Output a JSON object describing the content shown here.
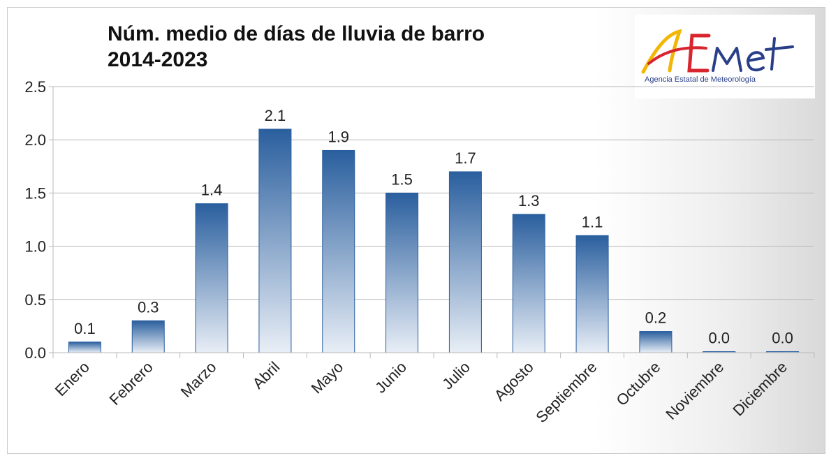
{
  "chart_data": {
    "type": "bar",
    "title": "Núm. medio de días de lluvia de barro",
    "subtitle": "2014-2023",
    "categories": [
      "Enero",
      "Febrero",
      "Marzo",
      "Abril",
      "Mayo",
      "Junio",
      "Julio",
      "Agosto",
      "Septiembre",
      "Octubre",
      "Noviembre",
      "Diciembre"
    ],
    "values": [
      0.1,
      0.3,
      1.4,
      2.1,
      1.9,
      1.5,
      1.7,
      1.3,
      1.1,
      0.2,
      0.0,
      0.0
    ],
    "data_labels": [
      "0.1",
      "0.3",
      "1.4",
      "2.1",
      "1.9",
      "1.5",
      "1.7",
      "1.3",
      "1.1",
      "0.2",
      "0.0",
      "0.0"
    ],
    "yticks": [
      "0.0",
      "0.5",
      "1.0",
      "1.5",
      "2.0",
      "2.5"
    ],
    "ylim": [
      0,
      2.5
    ],
    "xlabel": "",
    "ylabel": "",
    "grid": true,
    "legend": "none"
  },
  "logo": {
    "text": "AEMet",
    "subtitle": "Agencia Estatal de Meteorología"
  },
  "colors": {
    "bar_top": "#2a5f9e",
    "bar_bottom": "#e8eef6",
    "grid": "#b8b8b8",
    "logo_blue": "#2a3f8a",
    "logo_red": "#d8262e",
    "logo_yellow": "#f2b705"
  }
}
